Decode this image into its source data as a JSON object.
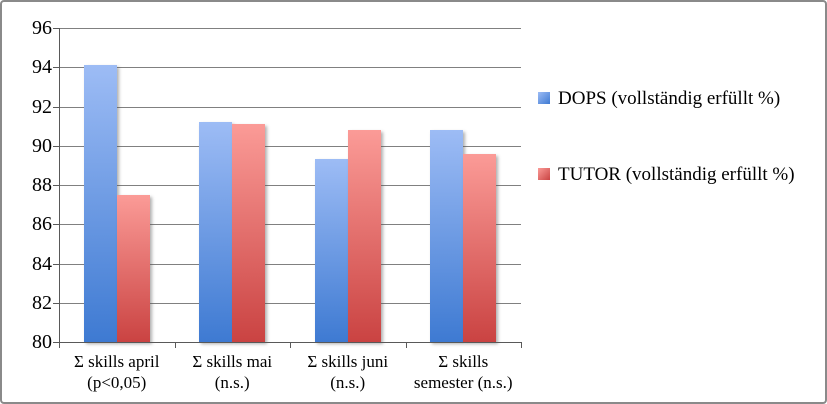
{
  "chart_data": {
    "type": "bar",
    "title": "",
    "xlabel": "",
    "ylabel": "",
    "categories": [
      {
        "lines": [
          "Σ skills april",
          "(p<0,05)"
        ]
      },
      {
        "lines": [
          "Σ skills mai",
          "(n.s.)"
        ]
      },
      {
        "lines": [
          "Σ skills juni",
          "(n.s.)"
        ]
      },
      {
        "lines": [
          "Σ skills",
          "semester (n.s.)"
        ]
      }
    ],
    "series": [
      {
        "key": "dops",
        "name": "DOPS (vollständig erfüllt %)",
        "values": [
          94.1,
          91.2,
          89.3,
          90.8
        ],
        "color_top": "#9dbcf5",
        "color_bottom": "#3e7ad2"
      },
      {
        "key": "tutor",
        "name": "TUTOR (vollständig erfüllt %)",
        "values": [
          87.5,
          91.1,
          90.8,
          89.6
        ],
        "color_top": "#fb9b97",
        "color_bottom": "#ca4342"
      }
    ],
    "ylim": [
      80,
      96
    ],
    "yticks": [
      96,
      94,
      92,
      90,
      88,
      86,
      84,
      82,
      80
    ],
    "grid": true,
    "legend_position": "right"
  },
  "colors": {
    "gridline": "#808080",
    "axis": "#595959",
    "frame_border": "#8a8a8a",
    "background": "#ffffff",
    "text": "#000000"
  }
}
